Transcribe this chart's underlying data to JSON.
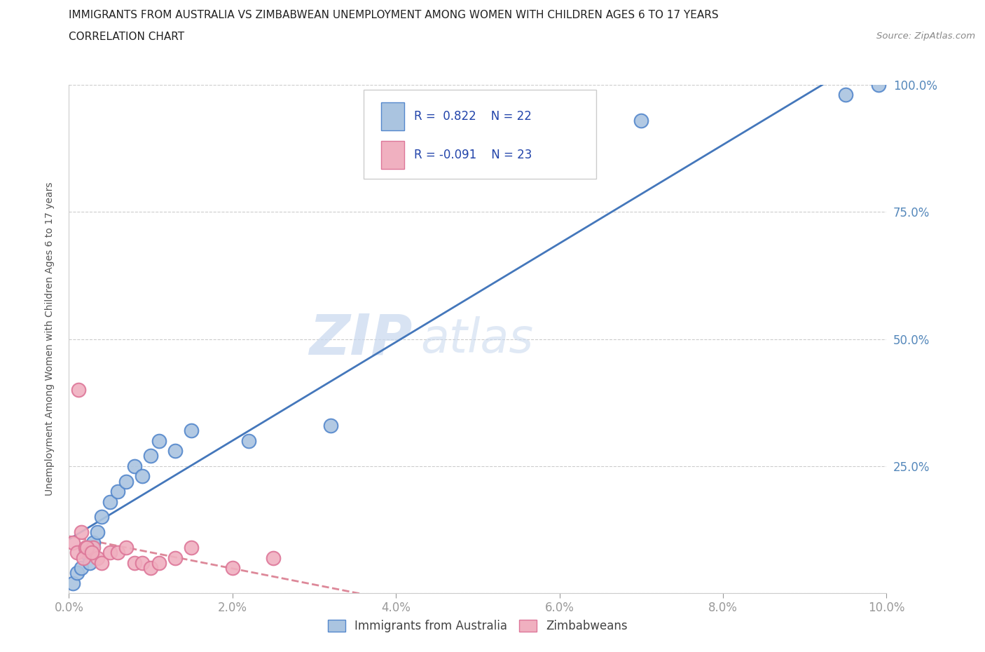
{
  "title1": "IMMIGRANTS FROM AUSTRALIA VS ZIMBABWEAN UNEMPLOYMENT AMONG WOMEN WITH CHILDREN AGES 6 TO 17 YEARS",
  "title2": "CORRELATION CHART",
  "source": "Source: ZipAtlas.com",
  "ylabel": "Unemployment Among Women with Children Ages 6 to 17 years",
  "x_ticks": [
    0.0,
    2.0,
    4.0,
    6.0,
    8.0,
    10.0
  ],
  "y_ticks": [
    0,
    25,
    50,
    75,
    100
  ],
  "x_tick_labels": [
    "0.0%",
    "2.0%",
    "4.0%",
    "6.0%",
    "8.0%",
    "10.0%"
  ],
  "y_tick_labels_right": [
    "100.0%",
    "75.0%",
    "50.0%",
    "25.0%",
    ""
  ],
  "blue_color": "#aac4e0",
  "blue_edge_color": "#5588cc",
  "pink_color": "#f0b0c0",
  "pink_edge_color": "#dd7799",
  "blue_line_color": "#4477bb",
  "pink_line_color": "#dd8899",
  "R_blue": 0.822,
  "N_blue": 22,
  "R_pink": -0.091,
  "N_pink": 23,
  "legend_label_blue": "Immigrants from Australia",
  "legend_label_pink": "Zimbabweans",
  "watermark_ZIP": "ZIP",
  "watermark_atlas": "atlas",
  "blue_x": [
    0.05,
    0.1,
    0.15,
    0.2,
    0.3,
    0.4,
    0.5,
    0.6,
    0.7,
    0.8,
    0.9,
    1.0,
    1.1,
    1.3,
    1.5,
    2.2,
    7.0,
    9.5,
    9.9,
    3.2,
    0.25,
    0.35
  ],
  "blue_y": [
    2,
    4,
    5,
    8,
    10,
    15,
    18,
    20,
    22,
    25,
    23,
    27,
    30,
    28,
    32,
    30,
    93,
    98,
    100,
    33,
    6,
    12
  ],
  "pink_x": [
    0.05,
    0.1,
    0.15,
    0.2,
    0.25,
    0.3,
    0.35,
    0.4,
    0.5,
    0.6,
    0.7,
    0.8,
    0.9,
    1.0,
    1.1,
    1.3,
    1.5,
    2.0,
    2.5,
    0.12,
    0.18,
    0.22,
    0.28
  ],
  "pink_y": [
    10,
    8,
    12,
    9,
    8,
    9,
    7,
    6,
    8,
    8,
    9,
    6,
    6,
    5,
    6,
    7,
    9,
    5,
    7,
    40,
    7,
    9,
    8
  ],
  "figsize": [
    14.06,
    9.3
  ],
  "dpi": 100
}
